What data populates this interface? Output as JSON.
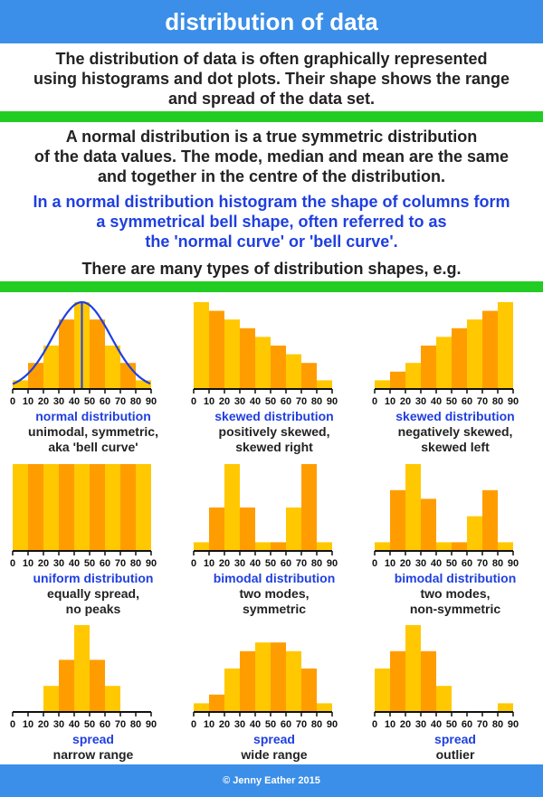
{
  "title": "distribution of data",
  "intro": [
    "The distribution of data is often graphically represented",
    "using histograms and dot plots. Their shape shows the range",
    "and spread of the data set."
  ],
  "normal_text": [
    "A normal distribution is a true symmetric distribution",
    "of the data values. The mode, median and mean are the same",
    "and together in the centre of the distribution."
  ],
  "bell_text": [
    "In a normal distribution histogram the shape of columns form",
    "a symmetrical bell shape, often referred to as",
    "the 'normal curve' or 'bell curve'."
  ],
  "types_text": "There are many types of distribution shapes, e.g.",
  "colors": {
    "title_bar": "#3b8fe8",
    "divider": "#22cc22",
    "dark_bar": "#ff9d00",
    "light_bar": "#ffc800",
    "curve": "#1f3fe0",
    "caption": "#1f3fe0"
  },
  "footer": "© Jenny Eather 2015",
  "chart_data": [
    {
      "type": "bar",
      "x_ticks": [
        "0",
        "10",
        "20",
        "30",
        "40",
        "50",
        "60",
        "70",
        "80",
        "90"
      ],
      "values": [
        1,
        3,
        5,
        8,
        10,
        8,
        5,
        3,
        1
      ],
      "ymax": 10,
      "curve": true,
      "caption_title": "normal distribution",
      "caption_lines": [
        "unimodal, symmetric,",
        "aka 'bell curve'"
      ]
    },
    {
      "type": "bar",
      "x_ticks": [
        "0",
        "10",
        "20",
        "30",
        "40",
        "50",
        "60",
        "70",
        "80",
        "90"
      ],
      "values": [
        10,
        9,
        8,
        7,
        6,
        5,
        4,
        3,
        1
      ],
      "ymax": 10,
      "caption_title": "skewed distribution",
      "caption_lines": [
        "positively skewed,",
        "skewed right"
      ]
    },
    {
      "type": "bar",
      "x_ticks": [
        "0",
        "10",
        "20",
        "30",
        "40",
        "50",
        "60",
        "70",
        "80",
        "90"
      ],
      "values": [
        1,
        2,
        3,
        5,
        6,
        7,
        8,
        9,
        10
      ],
      "ymax": 10,
      "caption_title": "skewed distribution",
      "caption_lines": [
        "negatively skewed,",
        "skewed left"
      ]
    },
    {
      "type": "bar",
      "x_ticks": [
        "0",
        "10",
        "20",
        "30",
        "40",
        "50",
        "60",
        "70",
        "80",
        "90"
      ],
      "values": [
        10,
        10,
        10,
        10,
        10,
        10,
        10,
        10,
        10
      ],
      "ymax": 10,
      "caption_title": "uniform distribution",
      "caption_lines": [
        "equally spread,",
        "no peaks"
      ]
    },
    {
      "type": "bar",
      "x_ticks": [
        "0",
        "10",
        "20",
        "30",
        "40",
        "50",
        "60",
        "70",
        "80",
        "90"
      ],
      "values": [
        1,
        5,
        10,
        5,
        1,
        1,
        5,
        10,
        1
      ],
      "ymax": 10,
      "caption_title": "bimodal distribution",
      "caption_lines": [
        "two modes,",
        "symmetric"
      ]
    },
    {
      "type": "bar",
      "x_ticks": [
        "0",
        "10",
        "20",
        "30",
        "40",
        "50",
        "60",
        "70",
        "80",
        "90"
      ],
      "values": [
        1,
        7,
        10,
        6,
        1,
        1,
        4,
        7,
        1
      ],
      "ymax": 10,
      "caption_title": "bimodal distribution",
      "caption_lines": [
        "two modes,",
        "non-symmetric"
      ]
    },
    {
      "type": "bar",
      "x_ticks": [
        "0",
        "10",
        "20",
        "30",
        "40",
        "50",
        "60",
        "70",
        "80",
        "90"
      ],
      "values": [
        0,
        0,
        3,
        6,
        10,
        6,
        3,
        0,
        0
      ],
      "ymax": 10,
      "caption_title": "spread",
      "caption_lines": [
        "narrow range"
      ]
    },
    {
      "type": "bar",
      "x_ticks": [
        "0",
        "10",
        "20",
        "30",
        "40",
        "50",
        "60",
        "70",
        "80",
        "90"
      ],
      "values": [
        1,
        2,
        5,
        7,
        8,
        8,
        7,
        5,
        1
      ],
      "ymax": 10,
      "caption_title": "spread",
      "caption_lines": [
        "wide range"
      ]
    },
    {
      "type": "bar",
      "x_ticks": [
        "0",
        "10",
        "20",
        "30",
        "40",
        "50",
        "60",
        "70",
        "80",
        "90"
      ],
      "values": [
        5,
        7,
        10,
        7,
        3,
        0,
        0,
        0,
        1
      ],
      "ymax": 10,
      "caption_title": "spread",
      "caption_lines": [
        "outlier"
      ]
    }
  ]
}
